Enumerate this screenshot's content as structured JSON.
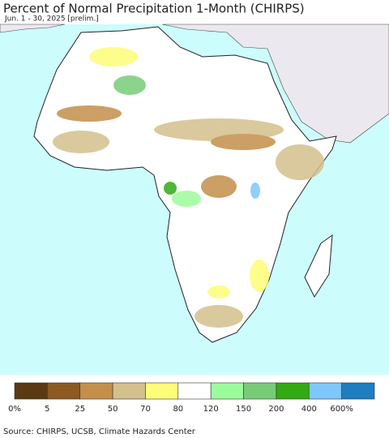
{
  "header": {
    "title": "Percent of Normal Precipitation 1-Month (CHIRPS)",
    "subtitle": "Jun. 1 - 30, 2025 [prelim.]"
  },
  "legend": {
    "labels": [
      "0%",
      "5",
      "25",
      "50",
      "70",
      "80",
      "120",
      "150",
      "200",
      "400",
      "600%"
    ],
    "colors": [
      "#5a3a12",
      "#8c5a22",
      "#c48f4a",
      "#d3c08c",
      "#fdfd78",
      "#ffffff",
      "#9cfc9c",
      "#78cc78",
      "#32aa12",
      "#7ec8fc",
      "#1e7ec0"
    ]
  },
  "footer": {
    "source": "Source: CHIRPS, UCSB, Climate Hazards Center"
  }
}
